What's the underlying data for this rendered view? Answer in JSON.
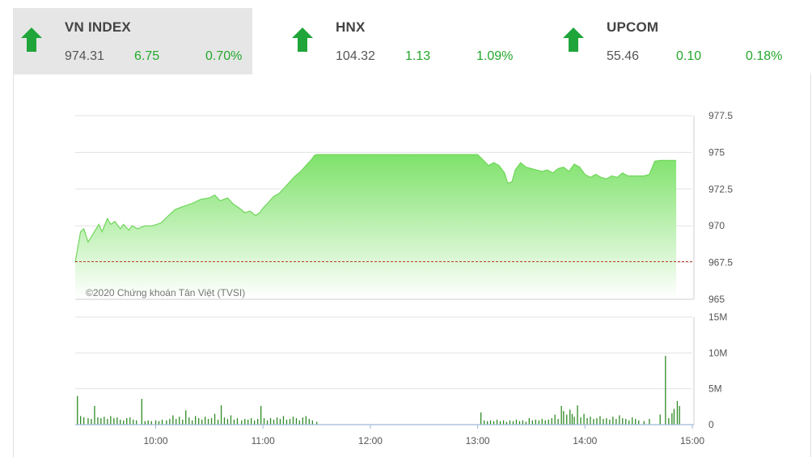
{
  "tiles": [
    {
      "name": "VN INDEX",
      "price": "974.31",
      "change": "6.75",
      "percent": "0.70%",
      "direction": "up",
      "active": true
    },
    {
      "name": "HNX",
      "price": "104.32",
      "change": "1.13",
      "percent": "1.09%",
      "direction": "up",
      "active": false
    },
    {
      "name": "UPCOM",
      "price": "55.46",
      "change": "0.10",
      "percent": "0.18%",
      "direction": "up",
      "active": false
    }
  ],
  "colors": {
    "up": "#1fa53a",
    "area_top": "#7ee26a",
    "line": "#6fd65a",
    "reference": "#c0392b",
    "volume": "#2f8a25"
  },
  "chart_data": [
    {
      "type": "area",
      "title": "",
      "watermark": "©2020 Chứng khoán Tân Việt (TVSI)",
      "ylim": [
        965,
        977.5
      ],
      "yticks": [
        "977.5",
        "975",
        "972.5",
        "970",
        "967.5",
        "965"
      ],
      "ytick_values": [
        977.5,
        975,
        972.5,
        970,
        967.5,
        965
      ],
      "reference": 967.56,
      "grid": true,
      "series": [
        {
          "values": [
            [
              9.25,
              967.5
            ],
            [
              9.3,
              969.6
            ],
            [
              9.33,
              969.8
            ],
            [
              9.37,
              968.9
            ],
            [
              9.42,
              969.5
            ],
            [
              9.47,
              970.1
            ],
            [
              9.5,
              969.6
            ],
            [
              9.55,
              970.5
            ],
            [
              9.58,
              970.1
            ],
            [
              9.62,
              970.3
            ],
            [
              9.67,
              969.8
            ],
            [
              9.7,
              970.1
            ],
            [
              9.75,
              969.7
            ],
            [
              9.78,
              970.0
            ],
            [
              9.83,
              969.8
            ],
            [
              9.9,
              970.0
            ],
            [
              9.97,
              970.0
            ],
            [
              10.05,
              970.2
            ],
            [
              10.12,
              970.7
            ],
            [
              10.18,
              971.1
            ],
            [
              10.25,
              971.3
            ],
            [
              10.33,
              971.5
            ],
            [
              10.42,
              971.8
            ],
            [
              10.5,
              971.9
            ],
            [
              10.55,
              972.1
            ],
            [
              10.6,
              971.7
            ],
            [
              10.67,
              971.9
            ],
            [
              10.72,
              971.5
            ],
            [
              10.78,
              971.2
            ],
            [
              10.83,
              970.9
            ],
            [
              10.88,
              971.0
            ],
            [
              10.93,
              970.7
            ],
            [
              10.97,
              970.9
            ],
            [
              11.0,
              971.2
            ],
            [
              11.05,
              971.6
            ],
            [
              11.1,
              972.0
            ],
            [
              11.15,
              972.2
            ],
            [
              11.2,
              972.6
            ],
            [
              11.25,
              973.0
            ],
            [
              11.3,
              973.4
            ],
            [
              11.35,
              973.7
            ],
            [
              11.4,
              974.1
            ],
            [
              11.45,
              974.5
            ],
            [
              11.48,
              974.8
            ],
            [
              11.5,
              974.85
            ],
            [
              11.6,
              974.85
            ],
            [
              11.75,
              974.85
            ],
            [
              11.9,
              974.85
            ],
            [
              12.0,
              974.85
            ],
            [
              12.98,
              974.85
            ],
            [
              13.0,
              974.85
            ],
            [
              13.02,
              974.7
            ],
            [
              13.05,
              974.5
            ],
            [
              13.1,
              974.1
            ],
            [
              13.15,
              974.3
            ],
            [
              13.2,
              974.1
            ],
            [
              13.25,
              973.6
            ],
            [
              13.28,
              972.9
            ],
            [
              13.32,
              973.0
            ],
            [
              13.35,
              973.8
            ],
            [
              13.4,
              974.3
            ],
            [
              13.45,
              974.0
            ],
            [
              13.5,
              973.9
            ],
            [
              13.55,
              973.8
            ],
            [
              13.6,
              973.7
            ],
            [
              13.65,
              973.8
            ],
            [
              13.7,
              973.6
            ],
            [
              13.75,
              973.9
            ],
            [
              13.8,
              974.0
            ],
            [
              13.85,
              973.7
            ],
            [
              13.9,
              974.2
            ],
            [
              13.95,
              974.0
            ],
            [
              14.0,
              973.5
            ],
            [
              14.05,
              973.3
            ],
            [
              14.1,
              973.5
            ],
            [
              14.15,
              973.3
            ],
            [
              14.2,
              973.2
            ],
            [
              14.25,
              973.4
            ],
            [
              14.3,
              973.3
            ],
            [
              14.35,
              973.6
            ],
            [
              14.4,
              973.4
            ],
            [
              14.45,
              973.4
            ],
            [
              14.5,
              973.4
            ],
            [
              14.55,
              973.4
            ],
            [
              14.6,
              973.5
            ],
            [
              14.65,
              974.4
            ],
            [
              14.7,
              974.45
            ],
            [
              14.75,
              974.45
            ],
            [
              14.8,
              974.45
            ],
            [
              14.85,
              974.45
            ]
          ]
        }
      ]
    },
    {
      "type": "bar",
      "ylim": [
        0,
        15
      ],
      "yticks": [
        "15M",
        "10M",
        "5M",
        "0"
      ],
      "ytick_values": [
        15,
        10,
        5,
        0
      ],
      "xticks": [
        "10:00",
        "11:00",
        "12:00",
        "13:00",
        "14:00",
        "15:00"
      ],
      "xtick_values": [
        10,
        11,
        12,
        13,
        14,
        15
      ],
      "unit": "M",
      "series": [
        {
          "values": [
            [
              9.27,
              4.0
            ],
            [
              9.3,
              1.2
            ],
            [
              9.33,
              1.0
            ],
            [
              9.37,
              0.9
            ],
            [
              9.4,
              0.8
            ],
            [
              9.43,
              2.6
            ],
            [
              9.46,
              1.0
            ],
            [
              9.49,
              0.9
            ],
            [
              9.52,
              1.1
            ],
            [
              9.55,
              0.8
            ],
            [
              9.58,
              1.2
            ],
            [
              9.61,
              0.9
            ],
            [
              9.64,
              1.0
            ],
            [
              9.67,
              0.7
            ],
            [
              9.7,
              0.6
            ],
            [
              9.73,
              0.9
            ],
            [
              9.76,
              1.0
            ],
            [
              9.79,
              0.7
            ],
            [
              9.82,
              0.6
            ],
            [
              9.87,
              3.6
            ],
            [
              9.9,
              0.5
            ],
            [
              9.93,
              0.6
            ],
            [
              9.96,
              0.5
            ],
            [
              10.0,
              0.6
            ],
            [
              10.03,
              0.5
            ],
            [
              10.06,
              0.7
            ],
            [
              10.1,
              0.6
            ],
            [
              10.13,
              0.8
            ],
            [
              10.16,
              1.3
            ],
            [
              10.19,
              0.8
            ],
            [
              10.22,
              1.1
            ],
            [
              10.25,
              0.7
            ],
            [
              10.28,
              2.0
            ],
            [
              10.31,
              1.0
            ],
            [
              10.34,
              0.6
            ],
            [
              10.37,
              1.2
            ],
            [
              10.4,
              0.9
            ],
            [
              10.43,
              0.7
            ],
            [
              10.46,
              1.1
            ],
            [
              10.49,
              0.8
            ],
            [
              10.52,
              0.9
            ],
            [
              10.55,
              1.5
            ],
            [
              10.58,
              0.7
            ],
            [
              10.61,
              2.7
            ],
            [
              10.64,
              1.0
            ],
            [
              10.67,
              0.8
            ],
            [
              10.7,
              1.3
            ],
            [
              10.73,
              0.7
            ],
            [
              10.76,
              0.9
            ],
            [
              10.8,
              0.6
            ],
            [
              10.83,
              0.8
            ],
            [
              10.86,
              0.7
            ],
            [
              10.89,
              0.9
            ],
            [
              10.92,
              0.6
            ],
            [
              10.95,
              0.8
            ],
            [
              10.98,
              2.6
            ],
            [
              11.01,
              0.9
            ],
            [
              11.04,
              0.6
            ],
            [
              11.07,
              0.9
            ],
            [
              11.1,
              0.7
            ],
            [
              11.13,
              1.0
            ],
            [
              11.16,
              0.8
            ],
            [
              11.19,
              1.2
            ],
            [
              11.22,
              0.7
            ],
            [
              11.25,
              0.8
            ],
            [
              11.28,
              1.1
            ],
            [
              11.31,
              0.9
            ],
            [
              11.34,
              0.6
            ],
            [
              11.37,
              1.0
            ],
            [
              11.4,
              1.2
            ],
            [
              11.43,
              0.8
            ],
            [
              11.46,
              0.6
            ],
            [
              11.5,
              0.4
            ],
            [
              13.03,
              1.7
            ],
            [
              13.06,
              0.6
            ],
            [
              13.09,
              0.5
            ],
            [
              13.12,
              0.6
            ],
            [
              13.15,
              0.5
            ],
            [
              13.18,
              0.7
            ],
            [
              13.21,
              0.5
            ],
            [
              13.24,
              0.6
            ],
            [
              13.27,
              0.4
            ],
            [
              13.3,
              0.6
            ],
            [
              13.33,
              0.5
            ],
            [
              13.36,
              0.7
            ],
            [
              13.39,
              0.5
            ],
            [
              13.42,
              0.6
            ],
            [
              13.45,
              0.4
            ],
            [
              13.48,
              0.9
            ],
            [
              13.51,
              0.6
            ],
            [
              13.54,
              0.7
            ],
            [
              13.57,
              0.6
            ],
            [
              13.6,
              0.8
            ],
            [
              13.63,
              0.6
            ],
            [
              13.66,
              0.7
            ],
            [
              13.69,
              0.9
            ],
            [
              13.72,
              1.4
            ],
            [
              13.75,
              0.8
            ],
            [
              13.78,
              2.6
            ],
            [
              13.8,
              1.9
            ],
            [
              13.83,
              1.4
            ],
            [
              13.86,
              2.1
            ],
            [
              13.88,
              1.5
            ],
            [
              13.9,
              1.1
            ],
            [
              13.93,
              2.7
            ],
            [
              13.96,
              1.0
            ],
            [
              13.99,
              1.5
            ],
            [
              14.02,
              0.9
            ],
            [
              14.05,
              1.1
            ],
            [
              14.08,
              0.8
            ],
            [
              14.11,
              0.9
            ],
            [
              14.14,
              1.2
            ],
            [
              14.17,
              0.8
            ],
            [
              14.2,
              0.9
            ],
            [
              14.23,
              0.7
            ],
            [
              14.26,
              1.1
            ],
            [
              14.29,
              0.8
            ],
            [
              14.32,
              1.3
            ],
            [
              14.35,
              0.9
            ],
            [
              14.38,
              0.8
            ],
            [
              14.41,
              0.6
            ],
            [
              14.44,
              1.0
            ],
            [
              14.47,
              0.8
            ],
            [
              14.5,
              0.6
            ],
            [
              14.55,
              0.5
            ],
            [
              14.6,
              0.8
            ],
            [
              14.7,
              1.4
            ],
            [
              14.75,
              9.6
            ],
            [
              14.78,
              0.9
            ],
            [
              14.81,
              1.6
            ],
            [
              14.83,
              2.2
            ],
            [
              14.86,
              3.3
            ],
            [
              14.88,
              2.6
            ]
          ]
        }
      ]
    }
  ]
}
